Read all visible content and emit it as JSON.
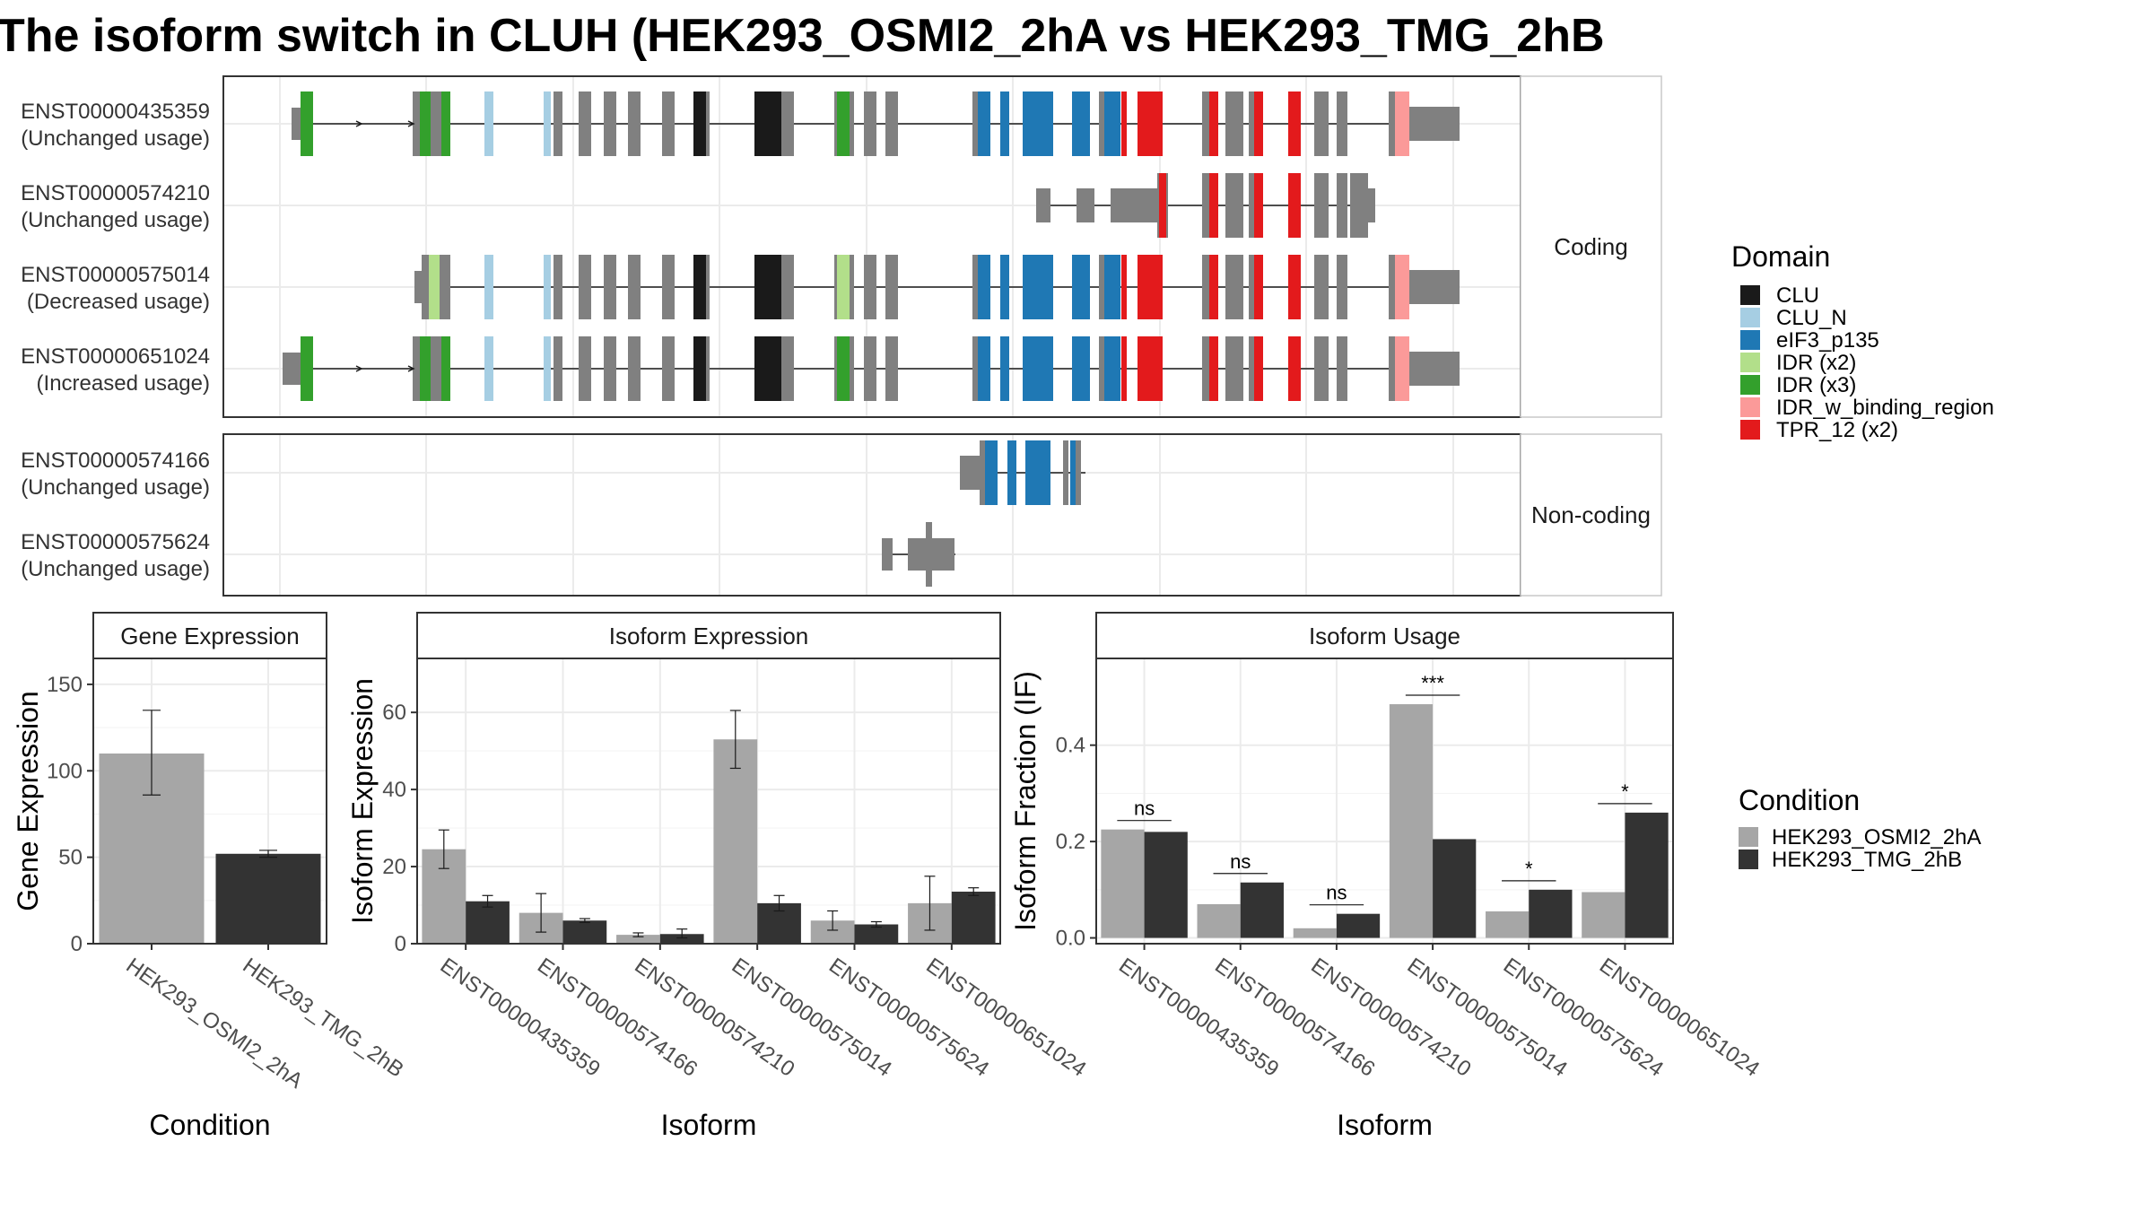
{
  "title": "The isoform switch in CLUH (HEK293_OSMI2_2hA vs HEK293_TMG_2hB",
  "colors": {
    "exon_plain": "#808080",
    "CLU": "#1a1a1a",
    "CLU_N": "#a6cee3",
    "eIF3_p135": "#1f78b4",
    "IDR (x2)": "#b2df8a",
    "IDR (x3)": "#33a02c",
    "IDR_w_binding_region": "#fb9a99",
    "TPR_12 (x2)": "#e31a1c",
    "cond_a": "#a6a6a6",
    "cond_b": "#333333",
    "panel_border": "#333333",
    "grid": "#ebebeb"
  },
  "structure": {
    "facets": [
      "Coding",
      "Non-coding"
    ],
    "transcripts": [
      {
        "id": "ENST00000435359",
        "usage": "(Unchanged usage)",
        "facet": "Coding"
      },
      {
        "id": "ENST00000574210",
        "usage": "(Unchanged usage)",
        "facet": "Coding"
      },
      {
        "id": "ENST00000575014",
        "usage": "(Decreased usage)",
        "facet": "Coding"
      },
      {
        "id": "ENST00000651024",
        "usage": "(Increased usage)",
        "facet": "Coding"
      },
      {
        "id": "ENST00000574166",
        "usage": "(Unchanged usage)",
        "facet": "Non-coding"
      },
      {
        "id": "ENST00000575624",
        "usage": "(Unchanged usage)",
        "facet": "Non-coding"
      }
    ]
  },
  "legend_domain": {
    "title": "Domain",
    "items": [
      "CLU",
      "CLU_N",
      "eIF3_p135",
      "IDR (x2)",
      "IDR (x3)",
      "IDR_w_binding_region",
      "TPR_12 (x2)"
    ]
  },
  "legend_condition": {
    "title": "Condition",
    "items": [
      "HEK293_OSMI2_2hA",
      "HEK293_TMG_2hB"
    ]
  },
  "chart_data": [
    {
      "type": "bar",
      "title": "Gene Expression",
      "xlabel": "Condition",
      "ylabel": "Gene Expression",
      "categories": [
        "HEK293_OSMI2_2hA",
        "HEK293_TMG_2hB"
      ],
      "values": [
        110,
        52
      ],
      "error_low": [
        86,
        50
      ],
      "error_high": [
        135,
        54
      ],
      "ylim": [
        0,
        165
      ],
      "yticks": [
        0,
        50,
        100,
        150
      ]
    },
    {
      "type": "bar",
      "title": "Isoform Expression",
      "xlabel": "Isoform",
      "ylabel": "Isoform Expression",
      "categories": [
        "ENST00000435359",
        "ENST00000574166",
        "ENST00000574210",
        "ENST00000575014",
        "ENST00000575624",
        "ENST00000651024"
      ],
      "series": [
        {
          "name": "HEK293_OSMI2_2hA",
          "values": [
            24.5,
            8,
            2.3,
            53,
            6,
            10.5
          ],
          "error_low": [
            19.5,
            3,
            1.8,
            45.5,
            3.5,
            3.5
          ],
          "error_high": [
            29.5,
            13,
            2.8,
            60.5,
            8.5,
            17.5
          ]
        },
        {
          "name": "HEK293_TMG_2hB",
          "values": [
            11,
            6,
            2.5,
            10.5,
            5,
            13.5
          ],
          "error_low": [
            9.5,
            5.5,
            1.5,
            8.5,
            4.3,
            12.5
          ],
          "error_high": [
            12.5,
            6.5,
            3.8,
            12.5,
            5.7,
            14.5
          ]
        }
      ],
      "ylim": [
        0,
        74
      ],
      "yticks": [
        0,
        20,
        40,
        60
      ]
    },
    {
      "type": "bar",
      "title": "Isoform Usage",
      "xlabel": "Isoform",
      "ylabel": "Isoform Fraction (IF)",
      "categories": [
        "ENST00000435359",
        "ENST00000574166",
        "ENST00000574210",
        "ENST00000575014",
        "ENST00000575624",
        "ENST00000651024"
      ],
      "series": [
        {
          "name": "HEK293_OSMI2_2hA",
          "values": [
            0.225,
            0.07,
            0.02,
            0.485,
            0.055,
            0.095
          ]
        },
        {
          "name": "HEK293_TMG_2hB",
          "values": [
            0.22,
            0.115,
            0.05,
            0.205,
            0.1,
            0.26
          ]
        }
      ],
      "significance": [
        "ns",
        "ns",
        "ns",
        "***",
        "*",
        "*"
      ],
      "ylim": [
        -0.012,
        0.58
      ],
      "yticks": [
        0.0,
        0.2,
        0.4
      ]
    }
  ]
}
